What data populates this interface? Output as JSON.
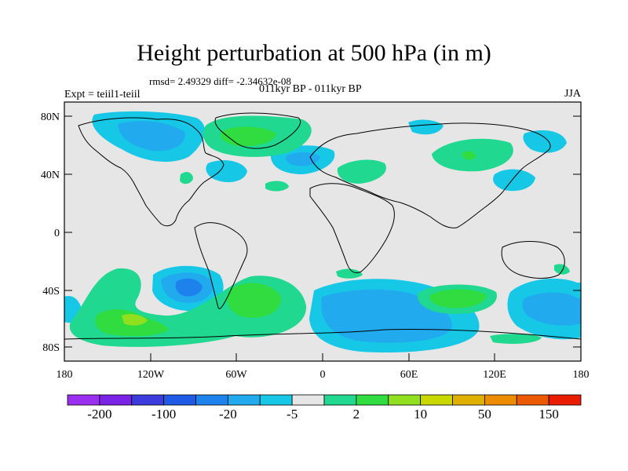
{
  "title": "Height perturbation at 500 hPa (in m)",
  "stats_line": "rmsd= 2.49329 diff= -2.34632e-08",
  "experiment": "Expt = teiil1-teiil",
  "period": "011kyr BP - 011kyr BP",
  "season": "JJA",
  "y_ticks": [
    "80N",
    "40N",
    "0",
    "40S",
    "80S"
  ],
  "x_ticks": [
    "180",
    "120W",
    "60W",
    "0",
    "60E",
    "120E",
    "180"
  ],
  "colorbar": {
    "labels": [
      "-200",
      "-100",
      "-20",
      "-5",
      "2",
      "10",
      "50",
      "150"
    ],
    "colors": [
      "#9b2ff0",
      "#7a22e6",
      "#3c3cdc",
      "#1e5ae6",
      "#1e82ec",
      "#22aaee",
      "#16c8e6",
      "#e6e6e6",
      "#20d890",
      "#30dc40",
      "#90e020",
      "#c8d800",
      "#e0b000",
      "#ec8c00",
      "#ec5a00",
      "#ea1c00"
    ]
  },
  "colors": {
    "land_bg": "#e6e6e6",
    "neg_1": "#16c8e6",
    "neg_2": "#22aaee",
    "neg_3": "#1e82ec",
    "pos_1": "#20d890",
    "pos_2": "#30dc40",
    "pos_3": "#90e020"
  }
}
